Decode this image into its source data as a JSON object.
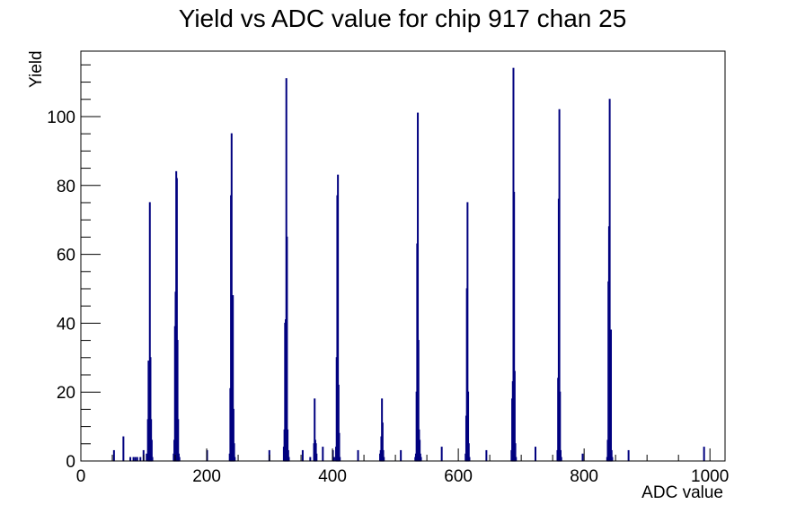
{
  "chart_data": {
    "type": "bar",
    "title": "Yield vs ADC value for chip 917 chan 25",
    "xlabel": "ADC value",
    "ylabel": "Yield",
    "xlim": [
      0,
      1024
    ],
    "ylim": [
      0,
      119
    ],
    "x_ticks": [
      0,
      200,
      400,
      600,
      800,
      1000
    ],
    "x_tick_labels": [
      "0",
      "200",
      "400",
      "600",
      "800",
      "1000"
    ],
    "y_ticks": [
      0,
      20,
      40,
      60,
      80,
      100
    ],
    "y_tick_labels": [
      "0",
      "20",
      "40",
      "60",
      "80",
      "100"
    ],
    "grid": false,
    "legend": "none",
    "color": "#00007f",
    "bin_width": 1,
    "bins": [
      [
        52,
        3
      ],
      [
        67,
        7
      ],
      [
        78,
        1
      ],
      [
        83,
        1
      ],
      [
        86,
        1
      ],
      [
        89,
        1
      ],
      [
        94,
        1
      ],
      [
        99,
        3
      ],
      [
        104,
        2
      ],
      [
        106,
        12
      ],
      [
        107,
        29
      ],
      [
        108,
        21
      ],
      [
        109,
        75
      ],
      [
        110,
        30
      ],
      [
        111,
        12
      ],
      [
        112,
        6
      ],
      [
        113,
        1
      ],
      [
        147,
        2
      ],
      [
        148,
        6
      ],
      [
        149,
        39
      ],
      [
        150,
        49
      ],
      [
        151,
        84
      ],
      [
        152,
        82
      ],
      [
        153,
        35
      ],
      [
        154,
        12
      ],
      [
        155,
        2
      ],
      [
        156,
        1
      ],
      [
        200,
        3
      ],
      [
        236,
        2
      ],
      [
        237,
        21
      ],
      [
        238,
        77
      ],
      [
        239,
        95
      ],
      [
        240,
        43
      ],
      [
        241,
        48
      ],
      [
        242,
        15
      ],
      [
        243,
        5
      ],
      [
        244,
        1
      ],
      [
        299,
        3
      ],
      [
        322,
        4
      ],
      [
        323,
        9
      ],
      [
        324,
        40
      ],
      [
        325,
        41
      ],
      [
        326,
        111
      ],
      [
        327,
        65
      ],
      [
        328,
        9
      ],
      [
        329,
        3
      ],
      [
        330,
        1
      ],
      [
        352,
        3
      ],
      [
        364,
        1
      ],
      [
        370,
        5
      ],
      [
        371,
        18
      ],
      [
        372,
        6
      ],
      [
        373,
        5
      ],
      [
        374,
        2
      ],
      [
        384,
        4
      ],
      [
        400,
        3
      ],
      [
        402,
        1
      ],
      [
        405,
        4
      ],
      [
        406,
        30
      ],
      [
        407,
        77
      ],
      [
        408,
        83
      ],
      [
        409,
        22
      ],
      [
        410,
        8
      ],
      [
        411,
        1
      ],
      [
        440,
        3
      ],
      [
        475,
        2
      ],
      [
        476,
        3
      ],
      [
        477,
        7
      ],
      [
        478,
        18
      ],
      [
        479,
        11
      ],
      [
        480,
        3
      ],
      [
        481,
        1
      ],
      [
        508,
        3
      ],
      [
        531,
        1
      ],
      [
        532,
        2
      ],
      [
        533,
        20
      ],
      [
        534,
        63
      ],
      [
        535,
        101
      ],
      [
        536,
        35
      ],
      [
        537,
        9
      ],
      [
        538,
        6
      ],
      [
        539,
        2
      ],
      [
        540,
        1
      ],
      [
        573,
        4
      ],
      [
        611,
        2
      ],
      [
        612,
        13
      ],
      [
        613,
        50
      ],
      [
        614,
        75
      ],
      [
        615,
        20
      ],
      [
        616,
        5
      ],
      [
        617,
        1
      ],
      [
        644,
        3
      ],
      [
        684,
        3
      ],
      [
        685,
        18
      ],
      [
        686,
        23
      ],
      [
        687,
        114
      ],
      [
        688,
        78
      ],
      [
        689,
        26
      ],
      [
        690,
        5
      ],
      [
        691,
        1
      ],
      [
        722,
        4
      ],
      [
        757,
        3
      ],
      [
        758,
        24
      ],
      [
        759,
        76
      ],
      [
        760,
        102
      ],
      [
        761,
        20
      ],
      [
        762,
        3
      ],
      [
        763,
        1
      ],
      [
        797,
        2
      ],
      [
        836,
        1
      ],
      [
        837,
        6
      ],
      [
        838,
        52
      ],
      [
        839,
        68
      ],
      [
        840,
        105
      ],
      [
        841,
        26
      ],
      [
        842,
        38
      ],
      [
        843,
        3
      ],
      [
        844,
        1
      ],
      [
        870,
        3
      ],
      [
        990,
        4
      ]
    ]
  }
}
